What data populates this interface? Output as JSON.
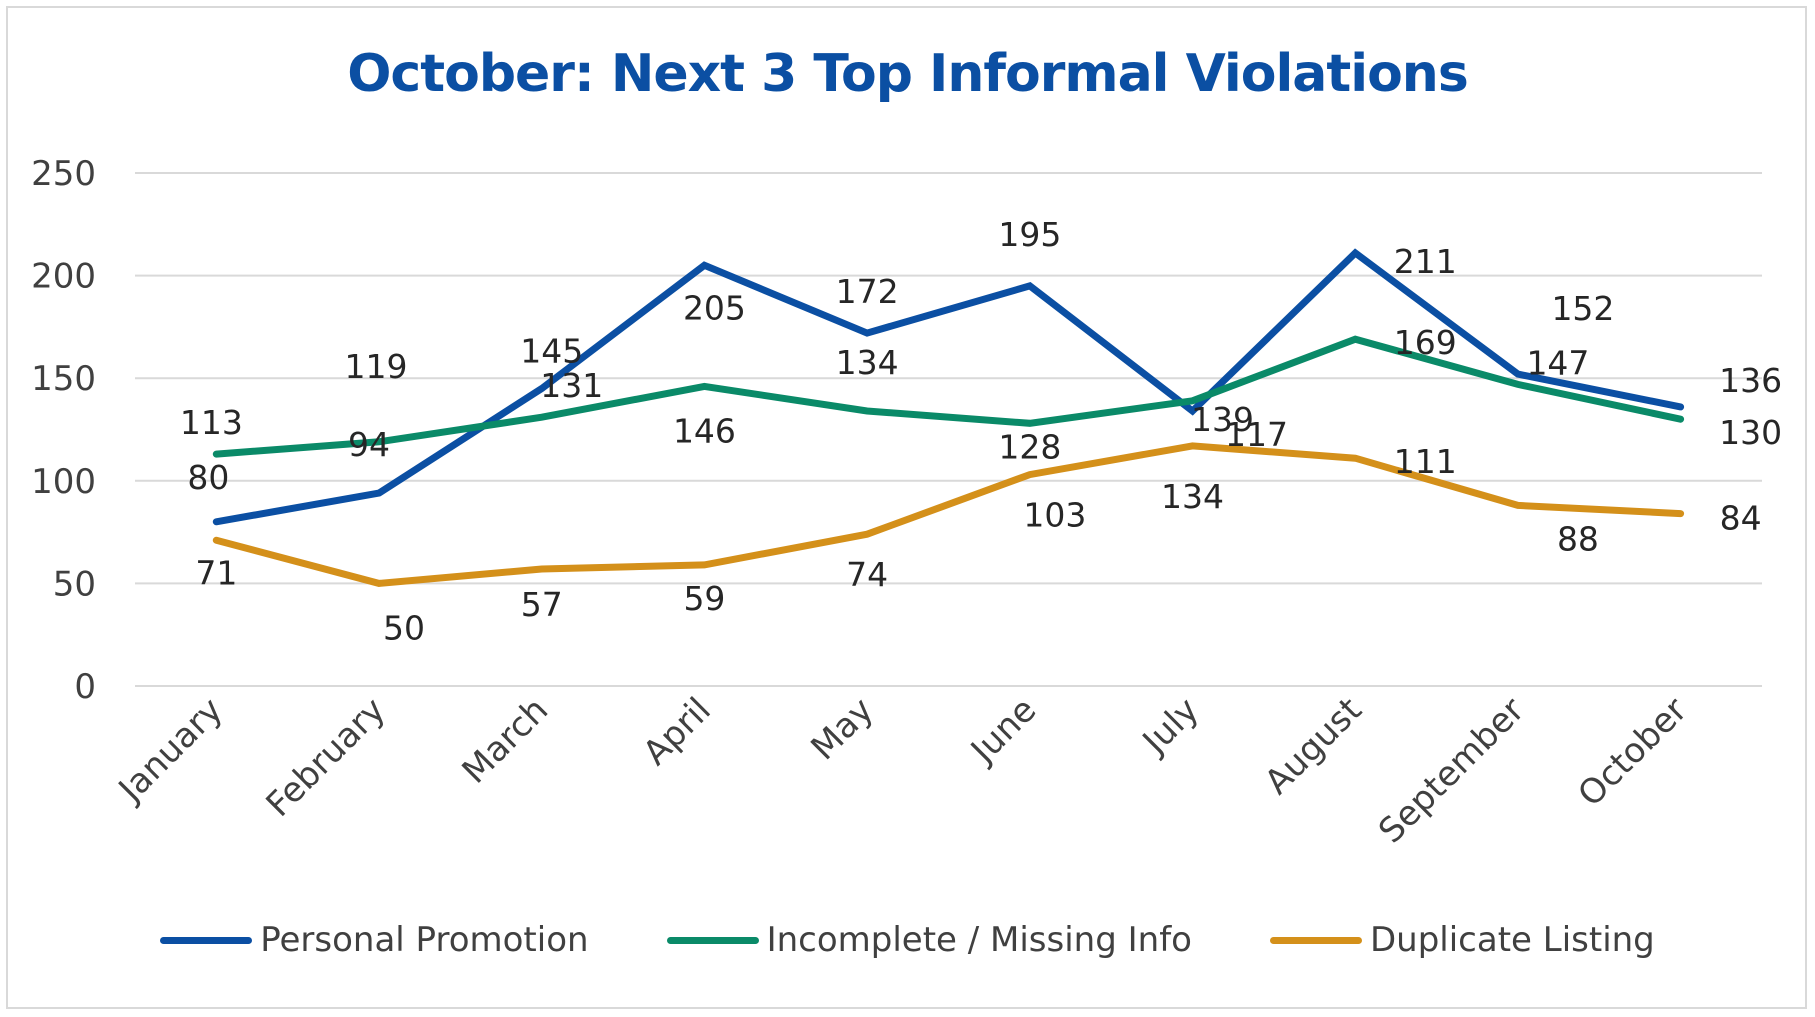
{
  "chart_data": {
    "type": "line",
    "title": "October: Next 3 Top Informal Violations",
    "title_color": "#0b4fa3",
    "categories": [
      "January",
      "February",
      "March",
      "April",
      "May",
      "June",
      "July",
      "August",
      "September",
      "October"
    ],
    "ylim": [
      0,
      250
    ],
    "yticks": [
      0,
      50,
      100,
      150,
      200,
      250
    ],
    "grid": true,
    "legend_position": "bottom",
    "series": [
      {
        "name": "Personal Promotion",
        "color": "#0b4fa3",
        "values": [
          80,
          94,
          145,
          205,
          172,
          195,
          134,
          211,
          152,
          136
        ],
        "labels": [
          "80",
          "94",
          "145",
          "205",
          "172",
          "195",
          "134",
          "211",
          "152",
          "136"
        ]
      },
      {
        "name": "Incomplete / Missing Info",
        "color": "#0a8a68",
        "values": [
          113,
          119,
          131,
          146,
          134,
          128,
          139,
          169,
          147,
          130
        ],
        "labels": [
          "113",
          "119",
          "131",
          "146",
          "134",
          "128",
          "139",
          "169",
          "147",
          "130"
        ]
      },
      {
        "name": "Duplicate Listing",
        "color": "#d4901a",
        "values": [
          71,
          50,
          57,
          59,
          74,
          103,
          117,
          111,
          88,
          84
        ],
        "labels": [
          "71",
          "50",
          "57",
          "59",
          "74",
          "103",
          "117",
          "111",
          "88",
          "84"
        ]
      }
    ]
  }
}
